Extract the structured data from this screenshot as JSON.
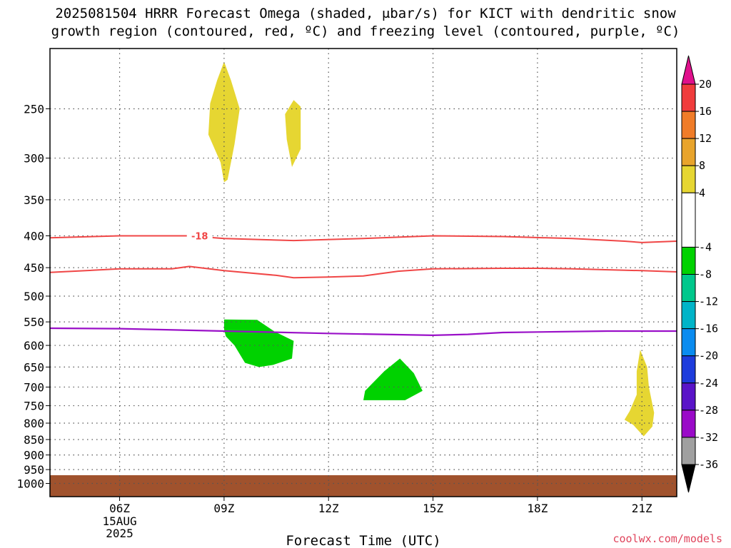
{
  "title": {
    "line1": "2025081504 HRRR Forecast Omega (shaded, μbar/s) for KICT with dendritic snow",
    "line2": "growth region (contoured, red, ºC) and freezing level (contoured, purple, ºC)"
  },
  "credit": "coolwx.com/models",
  "chart_data": {
    "type": "time-height cross-section",
    "title": "2025081504 HRRR Forecast Omega (shaded, μbar/s) for KICT with dendritic snow growth region (contoured, red, ºC) and freezing level (contoured, purple, ºC)",
    "xlabel": "Forecast Time (UTC)",
    "ylabel": "",
    "y_scale": "log (pressure, inverted)",
    "x_range": [
      "2025-08-15 04Z",
      "2025-08-15 22Z"
    ],
    "y_range_hpa": [
      1050,
      200
    ],
    "grid": true,
    "x_ticks": [
      {
        "hour": 6,
        "label": "06Z",
        "sub": [
          "15AUG",
          "2025"
        ]
      },
      {
        "hour": 9,
        "label": "09Z"
      },
      {
        "hour": 12,
        "label": "12Z"
      },
      {
        "hour": 15,
        "label": "15Z"
      },
      {
        "hour": 18,
        "label": "18Z"
      },
      {
        "hour": 21,
        "label": "21Z"
      }
    ],
    "y_ticks": [
      250,
      300,
      350,
      400,
      450,
      500,
      550,
      600,
      650,
      700,
      750,
      800,
      850,
      900,
      950,
      1000
    ],
    "colorbar": {
      "labels": [
        "20",
        "16",
        "12",
        "8",
        "4",
        "-4",
        "-8",
        "-12",
        "-16",
        "-20",
        "-24",
        "-28",
        "-32",
        "-36"
      ],
      "bands": [
        {
          "from": 20,
          "to": 24,
          "color": "#e0108c",
          "arrow": true
        },
        {
          "from": 16,
          "to": 20,
          "color": "#f03c3c"
        },
        {
          "from": 12,
          "to": 16,
          "color": "#f07c28"
        },
        {
          "from": 8,
          "to": 12,
          "color": "#e8a42c"
        },
        {
          "from": 4,
          "to": 8,
          "color": "#e6d632"
        },
        {
          "from": -4,
          "to": 4,
          "color": "#ffffff"
        },
        {
          "from": -8,
          "to": -4,
          "color": "#00d200"
        },
        {
          "from": -12,
          "to": -8,
          "color": "#00c88c"
        },
        {
          "from": -16,
          "to": -12,
          "color": "#00b4c8"
        },
        {
          "from": -20,
          "to": -16,
          "color": "#0a8cf0"
        },
        {
          "from": -24,
          "to": -20,
          "color": "#1e3cdc"
        },
        {
          "from": -28,
          "to": -24,
          "color": "#5a14c8"
        },
        {
          "from": -32,
          "to": -28,
          "color": "#9a0ac8"
        },
        {
          "from": -36,
          "to": -32,
          "color": "#a0a0a0"
        },
        {
          "from": -40,
          "to": -36,
          "color": "#000000",
          "arrow": true
        }
      ]
    },
    "omega_regions": [
      {
        "range": "4 to 8",
        "color": "#e6d632",
        "points": [
          [
            9.0,
            210
          ],
          [
            9.2,
            225
          ],
          [
            9.45,
            250
          ],
          [
            9.3,
            285
          ],
          [
            9.1,
            325
          ],
          [
            9.0,
            328
          ],
          [
            8.9,
            305
          ],
          [
            8.55,
            275
          ],
          [
            8.6,
            245
          ],
          [
            8.8,
            225
          ]
        ]
      },
      {
        "range": "4 to 8",
        "color": "#e6d632",
        "points": [
          [
            10.75,
            255
          ],
          [
            11.0,
            242
          ],
          [
            11.2,
            248
          ],
          [
            11.2,
            290
          ],
          [
            10.95,
            310
          ],
          [
            10.8,
            280
          ]
        ]
      },
      {
        "range": "-8 to -4",
        "color": "#00d200",
        "points": [
          [
            9.0,
            545
          ],
          [
            9.95,
            546
          ],
          [
            10.45,
            570
          ],
          [
            11.0,
            590
          ],
          [
            10.95,
            630
          ],
          [
            10.4,
            645
          ],
          [
            10.0,
            650
          ],
          [
            9.6,
            640
          ],
          [
            9.3,
            600
          ],
          [
            9.05,
            580
          ],
          [
            9.0,
            565
          ]
        ]
      },
      {
        "range": "-8 to -4",
        "color": "#00d200",
        "points": [
          [
            13.6,
            660
          ],
          [
            14.05,
            630
          ],
          [
            14.45,
            665
          ],
          [
            14.7,
            710
          ],
          [
            14.2,
            735
          ],
          [
            13.7,
            735
          ],
          [
            13.0,
            735
          ],
          [
            13.05,
            710
          ]
        ]
      },
      {
        "range": "4 to 8",
        "color": "#e6d632",
        "points": [
          [
            20.95,
            610
          ],
          [
            21.15,
            650
          ],
          [
            21.2,
            700
          ],
          [
            21.35,
            770
          ],
          [
            21.3,
            810
          ],
          [
            21.05,
            840
          ],
          [
            20.75,
            805
          ],
          [
            20.5,
            790
          ],
          [
            20.65,
            765
          ],
          [
            20.85,
            720
          ],
          [
            20.85,
            660
          ]
        ]
      }
    ],
    "dendritic_contours": [
      {
        "value": -18,
        "label": "-18",
        "color": "#f04646",
        "points": [
          [
            4.0,
            403
          ],
          [
            6.0,
            400
          ],
          [
            8.0,
            400
          ],
          [
            9.0,
            404
          ],
          [
            11.0,
            407
          ],
          [
            13.0,
            404
          ],
          [
            15.0,
            400
          ],
          [
            17.0,
            401
          ],
          [
            19.0,
            404
          ],
          [
            20.5,
            408
          ],
          [
            21.0,
            410
          ],
          [
            22.0,
            408
          ]
        ]
      },
      {
        "value": -12,
        "label": "",
        "color": "#f04646",
        "points": [
          [
            4.0,
            458
          ],
          [
            6.0,
            452
          ],
          [
            7.5,
            452
          ],
          [
            8.0,
            448
          ],
          [
            9.0,
            455
          ],
          [
            10.5,
            463
          ],
          [
            11.0,
            467
          ],
          [
            12.0,
            466
          ],
          [
            13.0,
            464
          ],
          [
            14.0,
            456
          ],
          [
            15.0,
            452
          ],
          [
            17.0,
            451
          ],
          [
            18.0,
            451
          ],
          [
            19.0,
            452
          ],
          [
            21.0,
            455
          ],
          [
            22.0,
            457
          ]
        ]
      }
    ],
    "freezing_level": {
      "value": 0,
      "color": "#9a10c8",
      "points": [
        [
          4.0,
          563
        ],
        [
          6.0,
          564
        ],
        [
          9.0,
          569
        ],
        [
          12.0,
          574
        ],
        [
          15.0,
          578
        ],
        [
          16.0,
          576
        ],
        [
          17.0,
          572
        ],
        [
          18.0,
          571
        ],
        [
          20.0,
          569
        ],
        [
          22.0,
          569
        ]
      ]
    },
    "ground": {
      "color": "#a0522d",
      "top_hpa": 970
    }
  }
}
